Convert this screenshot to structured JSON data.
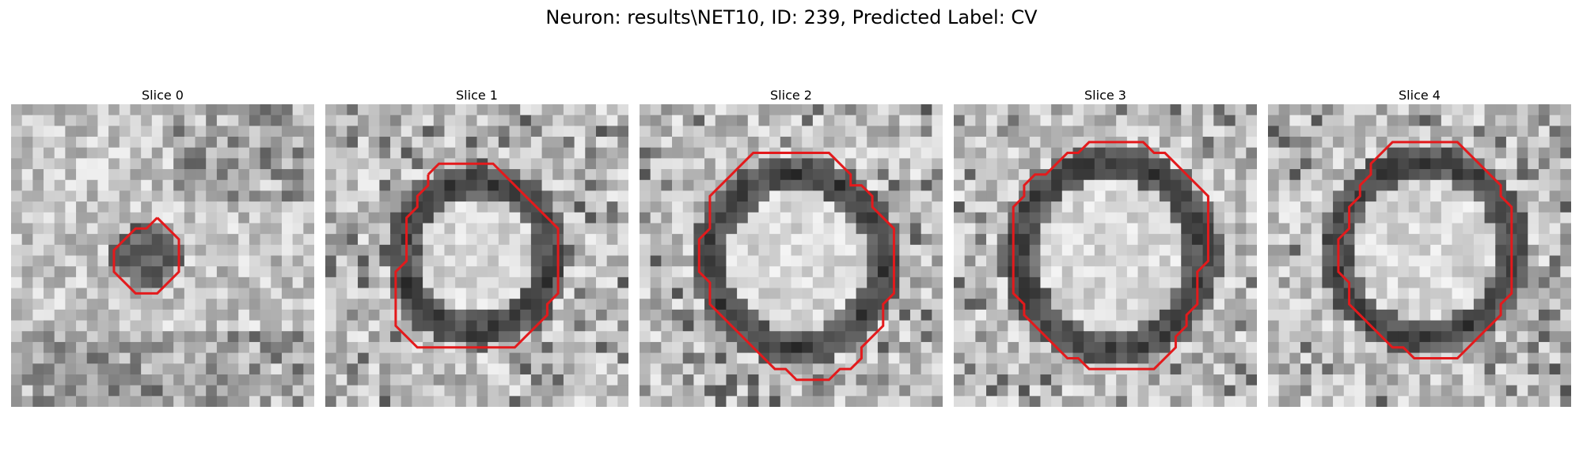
{
  "figure": {
    "title": "Neuron: results\\NET10, ID: 239, Predicted Label: CV",
    "contour_color": "#e31a1c",
    "slices": [
      {
        "label": "Slice 0",
        "contour": [
          [
            13.5,
            10.5
          ],
          [
            14.5,
            11.5
          ],
          [
            15.5,
            12.5
          ],
          [
            15.5,
            13.5
          ],
          [
            15.5,
            14.5
          ],
          [
            15.5,
            15.5
          ],
          [
            14.5,
            16.5
          ],
          [
            13.5,
            17.5
          ],
          [
            12.5,
            17.5
          ],
          [
            11.5,
            17.5
          ],
          [
            10.5,
            16.5
          ],
          [
            9.5,
            15.5
          ],
          [
            9.5,
            14.5
          ],
          [
            9.5,
            13.5
          ],
          [
            10.5,
            12.5
          ],
          [
            11.5,
            11.5
          ],
          [
            12.5,
            11.5
          ]
        ]
      },
      {
        "label": "Slice 1",
        "contour": [
          [
            9.5,
            6.5
          ],
          [
            10.5,
            5.5
          ],
          [
            11.5,
            5.5
          ],
          [
            12.5,
            5.5
          ],
          [
            13.5,
            5.5
          ],
          [
            14.5,
            5.5
          ],
          [
            15.5,
            5.5
          ],
          [
            16.5,
            6.5
          ],
          [
            17.5,
            7.5
          ],
          [
            18.5,
            8.5
          ],
          [
            19.5,
            9.5
          ],
          [
            20.5,
            10.5
          ],
          [
            21.5,
            11.5
          ],
          [
            21.5,
            12.5
          ],
          [
            21.5,
            13.5
          ],
          [
            21.5,
            14.5
          ],
          [
            21.5,
            15.5
          ],
          [
            21.5,
            16.5
          ],
          [
            21.5,
            17.5
          ],
          [
            20.5,
            18.5
          ],
          [
            20.5,
            19.5
          ],
          [
            19.5,
            20.5
          ],
          [
            18.5,
            21.5
          ],
          [
            17.5,
            22.5
          ],
          [
            16.5,
            22.5
          ],
          [
            15.5,
            22.5
          ],
          [
            14.5,
            22.5
          ],
          [
            13.5,
            22.5
          ],
          [
            12.5,
            22.5
          ],
          [
            11.5,
            22.5
          ],
          [
            10.5,
            22.5
          ],
          [
            9.5,
            22.5
          ],
          [
            8.5,
            22.5
          ],
          [
            7.5,
            21.5
          ],
          [
            6.5,
            20.5
          ],
          [
            6.5,
            19.5
          ],
          [
            6.5,
            18.5
          ],
          [
            6.5,
            17.5
          ],
          [
            6.5,
            16.5
          ],
          [
            6.5,
            15.5
          ],
          [
            7.5,
            14.5
          ],
          [
            7.5,
            13.5
          ],
          [
            7.5,
            12.5
          ],
          [
            7.5,
            11.5
          ],
          [
            7.5,
            10.5
          ],
          [
            8.5,
            9.5
          ],
          [
            8.5,
            8.5
          ],
          [
            9.5,
            7.5
          ]
        ]
      },
      {
        "label": "Slice 2",
        "contour": [
          [
            9.5,
            5.5
          ],
          [
            10.5,
            4.5
          ],
          [
            11.5,
            4.5
          ],
          [
            12.5,
            4.5
          ],
          [
            13.5,
            4.5
          ],
          [
            14.5,
            4.5
          ],
          [
            15.5,
            4.5
          ],
          [
            16.5,
            4.5
          ],
          [
            17.5,
            4.5
          ],
          [
            18.5,
            5.5
          ],
          [
            19.5,
            6.5
          ],
          [
            19.5,
            7.5
          ],
          [
            20.5,
            7.5
          ],
          [
            21.5,
            8.5
          ],
          [
            21.5,
            9.5
          ],
          [
            22.5,
            10.5
          ],
          [
            23.5,
            11.5
          ],
          [
            23.5,
            12.5
          ],
          [
            23.5,
            13.5
          ],
          [
            23.5,
            14.5
          ],
          [
            23.5,
            15.5
          ],
          [
            23.5,
            16.5
          ],
          [
            23.5,
            17.5
          ],
          [
            22.5,
            18.5
          ],
          [
            22.5,
            19.5
          ],
          [
            22.5,
            20.5
          ],
          [
            21.5,
            21.5
          ],
          [
            20.5,
            22.5
          ],
          [
            20.5,
            23.5
          ],
          [
            19.5,
            24.5
          ],
          [
            18.5,
            24.5
          ],
          [
            17.5,
            25.5
          ],
          [
            16.5,
            25.5
          ],
          [
            15.5,
            25.5
          ],
          [
            14.5,
            25.5
          ],
          [
            13.5,
            24.5
          ],
          [
            12.5,
            24.5
          ],
          [
            11.5,
            23.5
          ],
          [
            10.5,
            22.5
          ],
          [
            9.5,
            21.5
          ],
          [
            8.5,
            20.5
          ],
          [
            7.5,
            19.5
          ],
          [
            6.5,
            18.5
          ],
          [
            6.5,
            17.5
          ],
          [
            6.5,
            16.5
          ],
          [
            5.5,
            15.5
          ],
          [
            5.5,
            14.5
          ],
          [
            5.5,
            13.5
          ],
          [
            5.5,
            12.5
          ],
          [
            6.5,
            11.5
          ],
          [
            6.5,
            10.5
          ],
          [
            6.5,
            9.5
          ],
          [
            6.5,
            8.5
          ],
          [
            7.5,
            7.5
          ],
          [
            8.5,
            6.5
          ]
        ]
      },
      {
        "label": "Slice 3",
        "contour": [
          [
            9.5,
            5.5
          ],
          [
            10.5,
            4.5
          ],
          [
            11.5,
            4.5
          ],
          [
            12.5,
            3.5
          ],
          [
            13.5,
            3.5
          ],
          [
            14.5,
            3.5
          ],
          [
            15.5,
            3.5
          ],
          [
            16.5,
            3.5
          ],
          [
            17.5,
            3.5
          ],
          [
            18.5,
            4.5
          ],
          [
            19.5,
            4.5
          ],
          [
            20.5,
            5.5
          ],
          [
            21.5,
            6.5
          ],
          [
            22.5,
            7.5
          ],
          [
            23.5,
            8.5
          ],
          [
            23.5,
            9.5
          ],
          [
            23.5,
            10.5
          ],
          [
            23.5,
            11.5
          ],
          [
            23.5,
            12.5
          ],
          [
            23.5,
            13.5
          ],
          [
            23.5,
            14.5
          ],
          [
            22.5,
            15.5
          ],
          [
            22.5,
            16.5
          ],
          [
            22.5,
            17.5
          ],
          [
            22.5,
            18.5
          ],
          [
            21.5,
            19.5
          ],
          [
            21.5,
            20.5
          ],
          [
            20.5,
            21.5
          ],
          [
            20.5,
            22.5
          ],
          [
            19.5,
            23.5
          ],
          [
            18.5,
            24.5
          ],
          [
            17.5,
            24.5
          ],
          [
            16.5,
            24.5
          ],
          [
            15.5,
            24.5
          ],
          [
            14.5,
            24.5
          ],
          [
            13.5,
            24.5
          ],
          [
            12.5,
            24.5
          ],
          [
            11.5,
            23.5
          ],
          [
            10.5,
            23.5
          ],
          [
            9.5,
            22.5
          ],
          [
            8.5,
            21.5
          ],
          [
            7.5,
            20.5
          ],
          [
            6.5,
            19.5
          ],
          [
            6.5,
            18.5
          ],
          [
            5.5,
            17.5
          ],
          [
            5.5,
            16.5
          ],
          [
            5.5,
            15.5
          ],
          [
            5.5,
            14.5
          ],
          [
            5.5,
            13.5
          ],
          [
            5.5,
            12.5
          ],
          [
            5.5,
            11.5
          ],
          [
            5.5,
            10.5
          ],
          [
            5.5,
            9.5
          ],
          [
            6.5,
            8.5
          ],
          [
            6.5,
            7.5
          ],
          [
            7.5,
            6.5
          ],
          [
            8.5,
            6.5
          ]
        ]
      },
      {
        "label": "Slice 4",
        "contour": [
          [
            10.5,
            4.5
          ],
          [
            11.5,
            3.5
          ],
          [
            12.5,
            3.5
          ],
          [
            13.5,
            3.5
          ],
          [
            14.5,
            3.5
          ],
          [
            15.5,
            3.5
          ],
          [
            16.5,
            3.5
          ],
          [
            17.5,
            3.5
          ],
          [
            18.5,
            4.5
          ],
          [
            19.5,
            5.5
          ],
          [
            20.5,
            6.5
          ],
          [
            21.5,
            7.5
          ],
          [
            21.5,
            8.5
          ],
          [
            22.5,
            9.5
          ],
          [
            22.5,
            10.5
          ],
          [
            22.5,
            11.5
          ],
          [
            22.5,
            12.5
          ],
          [
            22.5,
            13.5
          ],
          [
            22.5,
            14.5
          ],
          [
            22.5,
            15.5
          ],
          [
            22.5,
            16.5
          ],
          [
            22.5,
            17.5
          ],
          [
            21.5,
            18.5
          ],
          [
            21.5,
            19.5
          ],
          [
            20.5,
            20.5
          ],
          [
            19.5,
            21.5
          ],
          [
            18.5,
            22.5
          ],
          [
            17.5,
            23.5
          ],
          [
            16.5,
            23.5
          ],
          [
            15.5,
            23.5
          ],
          [
            14.5,
            23.5
          ],
          [
            13.5,
            23.5
          ],
          [
            12.5,
            22.5
          ],
          [
            11.5,
            22.5
          ],
          [
            10.5,
            21.5
          ],
          [
            9.5,
            20.5
          ],
          [
            8.5,
            19.5
          ],
          [
            7.5,
            18.5
          ],
          [
            7.5,
            17.5
          ],
          [
            7.5,
            16.5
          ],
          [
            6.5,
            15.5
          ],
          [
            6.5,
            14.5
          ],
          [
            6.5,
            13.5
          ],
          [
            6.5,
            12.5
          ],
          [
            7.5,
            11.5
          ],
          [
            7.5,
            10.5
          ],
          [
            7.5,
            9.5
          ],
          [
            8.5,
            8.5
          ],
          [
            8.5,
            7.5
          ],
          [
            9.5,
            6.5
          ],
          [
            9.5,
            5.5
          ]
        ]
      }
    ]
  }
}
